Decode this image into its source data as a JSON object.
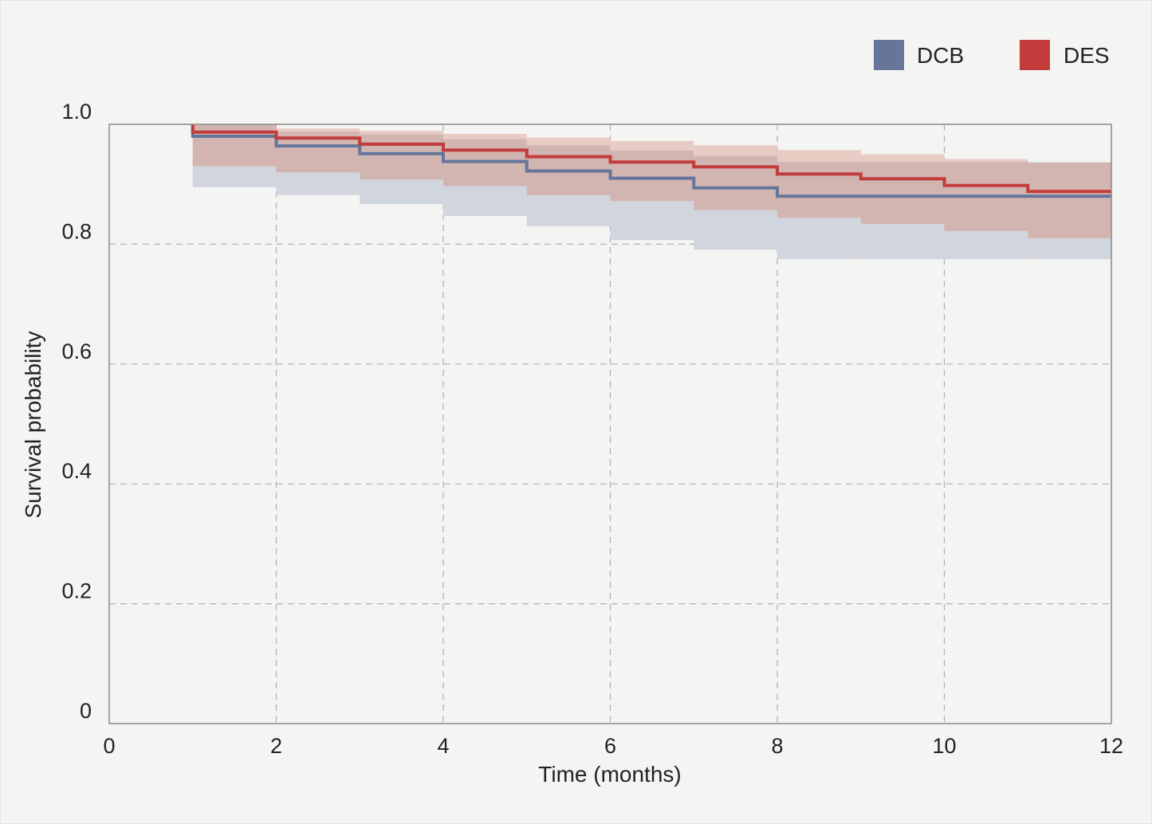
{
  "chart_data": {
    "type": "line",
    "subtype": "kaplan-meier step",
    "title": "",
    "xlabel": "Time (months)",
    "ylabel": "Survival probability",
    "xlim": [
      0,
      12
    ],
    "ylim": [
      0,
      1.0
    ],
    "xticks": [
      "0",
      "2",
      "4",
      "6",
      "8",
      "10",
      "12"
    ],
    "yticks": [
      "0",
      "0.2",
      "0.4",
      "0.6",
      "0.8",
      "1.0"
    ],
    "grid": true,
    "legend_position": "top-right",
    "step_times": [
      1,
      2,
      3,
      4,
      5,
      6,
      7,
      8,
      9,
      10,
      11,
      12
    ],
    "series": [
      {
        "name": "DCB",
        "color": "#65769a",
        "band_color": "#d1d5dd",
        "survival": [
          0.98,
          0.964,
          0.951,
          0.938,
          0.922,
          0.91,
          0.894,
          0.88,
          0.88,
          0.88,
          0.88
        ],
        "ci_upper": [
          1.0,
          0.988,
          0.983,
          0.975,
          0.965,
          0.956,
          0.947,
          0.937,
          0.937,
          0.937,
          0.937
        ],
        "ci_lower": [
          0.895,
          0.882,
          0.867,
          0.847,
          0.83,
          0.807,
          0.791,
          0.775,
          0.775,
          0.775,
          0.775
        ]
      },
      {
        "name": "DES",
        "color": "#c23c3b",
        "band_color": "#e8cbc2",
        "overlap_color": "#d2b4b1",
        "survival": [
          0.987,
          0.977,
          0.967,
          0.957,
          0.946,
          0.937,
          0.929,
          0.917,
          0.909,
          0.898,
          0.888
        ],
        "ci_upper": [
          1.0,
          0.993,
          0.989,
          0.984,
          0.978,
          0.972,
          0.965,
          0.957,
          0.95,
          0.942,
          0.936
        ],
        "ci_lower": [
          0.93,
          0.92,
          0.908,
          0.897,
          0.882,
          0.872,
          0.857,
          0.844,
          0.834,
          0.822,
          0.81
        ]
      }
    ]
  }
}
